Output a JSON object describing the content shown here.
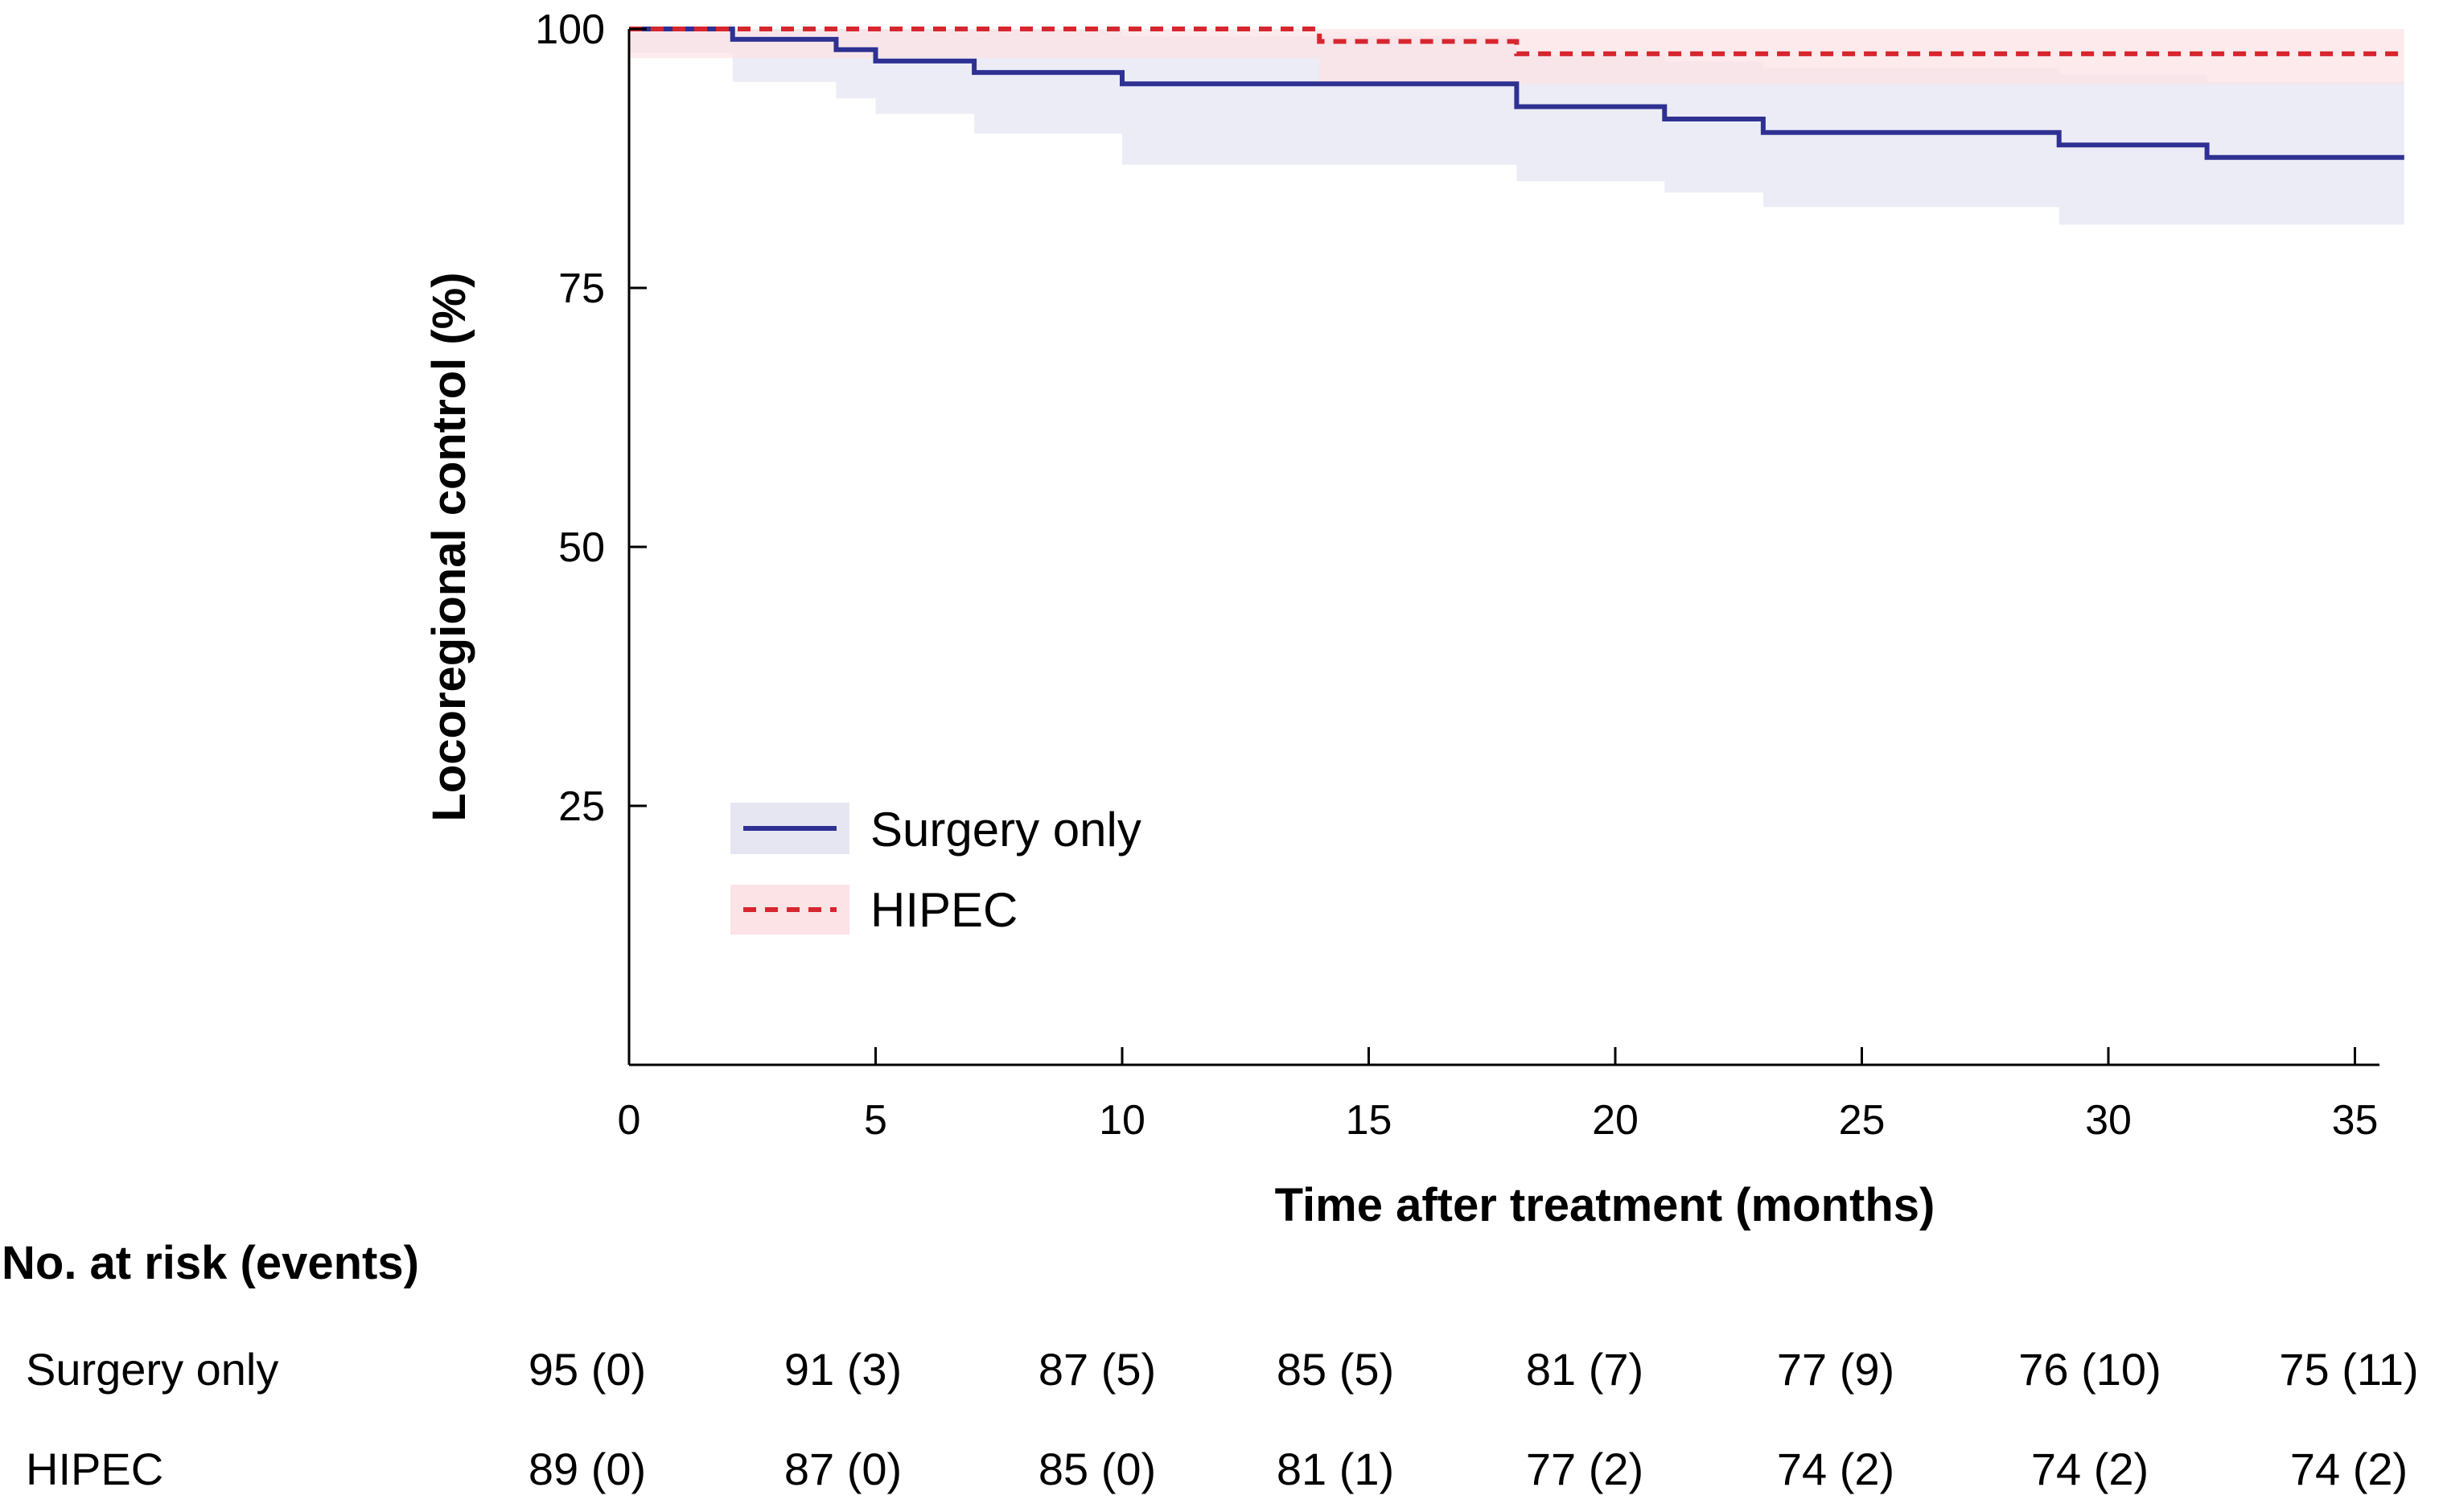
{
  "chart_data": {
    "type": "line",
    "subtype": "kaplan-meier-step",
    "xlabel": "Time after treatment (months)",
    "ylabel": "Locoregional control (%)",
    "xlim": [
      0,
      35.5
    ],
    "ylim": [
      0,
      100
    ],
    "x_ticks": [
      "0",
      "5",
      "10",
      "15",
      "20",
      "25",
      "30",
      "35"
    ],
    "y_ticks": [
      "100",
      "75",
      "50",
      "25"
    ],
    "grid": false,
    "legend_position": "bottom-left",
    "series": [
      {
        "name": "Surgery only",
        "color": "#2e3192",
        "line_style": "solid",
        "ci_color": "#e6e6f3",
        "x": [
          0,
          2.1,
          4.2,
          5.0,
          7.0,
          10.0,
          18.0,
          21.0,
          23.0,
          29.0,
          32.0,
          36.0
        ],
        "y": [
          100,
          99.0,
          98.0,
          96.9,
          95.8,
          94.7,
          92.5,
          91.3,
          90.0,
          88.8,
          87.6,
          87.6
        ],
        "ci_upper": [
          100,
          100,
          100,
          100,
          99.9,
          99.3,
          97.5,
          96.9,
          96.2,
          95.6,
          94.9,
          94.9
        ],
        "ci_lower": [
          100,
          97.7,
          94.9,
          93.3,
          91.8,
          89.9,
          86.9,
          85.3,
          84.2,
          82.8,
          81.1,
          81.1
        ]
      },
      {
        "name": "HIPEC",
        "color": "#d7262f",
        "line_style": "dashed",
        "ci_color": "#fbe3e6",
        "x": [
          0,
          14.0,
          18.0,
          36.0
        ],
        "y": [
          100,
          98.8,
          97.6,
          97.6
        ],
        "ci_upper": [
          100,
          100,
          100,
          100
        ],
        "ci_lower": [
          100,
          97.2,
          94.7,
          94.7
        ]
      }
    ],
    "risk_table": {
      "title": "No. at risk (events)",
      "rows": [
        {
          "name": "Surgery only",
          "values": [
            "95 (0)",
            "91 (3)",
            "87 (5)",
            "85 (5)",
            "81 (7)",
            "77 (9)",
            "76 (10)",
            "75 (11)"
          ]
        },
        {
          "name": "HIPEC",
          "values": [
            "89 (0)",
            "87 (0)",
            "85 (0)",
            "81 (1)",
            "77 (2)",
            "74 (2)",
            "74 (2)",
            "74 (2)"
          ]
        }
      ]
    }
  }
}
